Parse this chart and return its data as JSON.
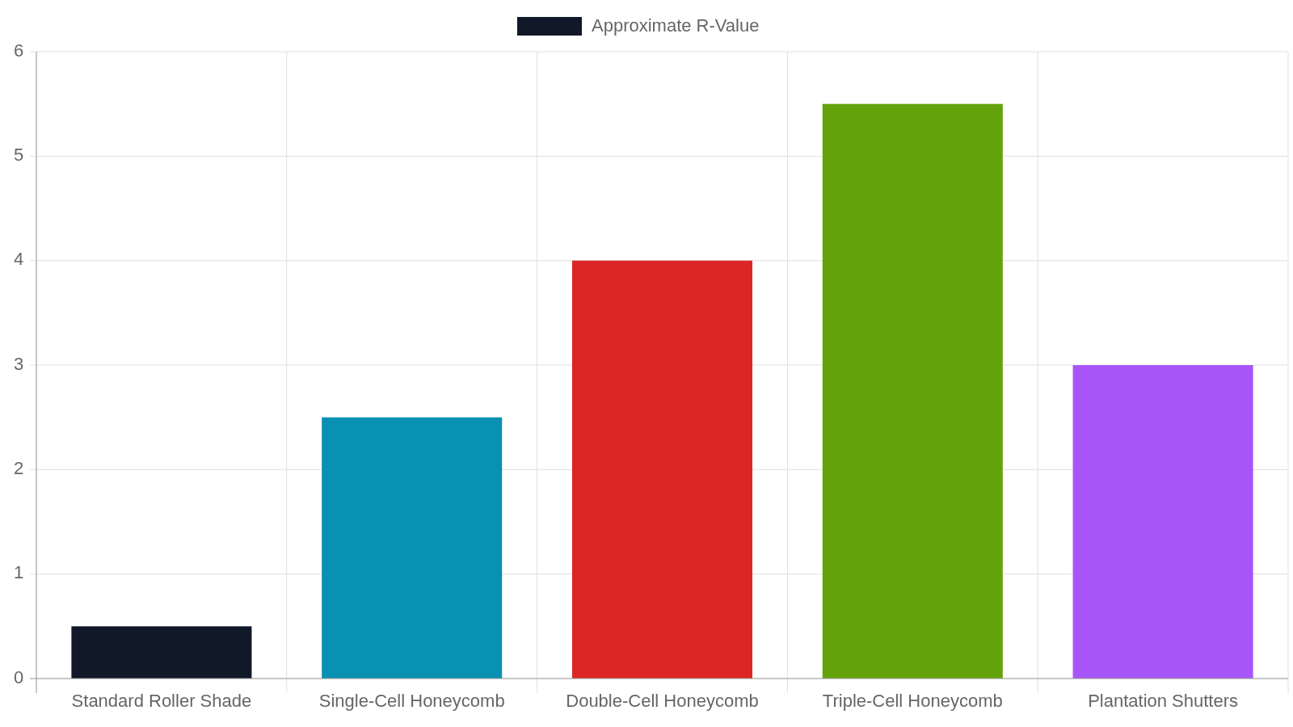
{
  "chart_data": {
    "type": "bar",
    "categories": [
      "Standard Roller Shade",
      "Single-Cell Honeycomb",
      "Double-Cell Honeycomb",
      "Triple-Cell Honeycomb",
      "Plantation Shutters"
    ],
    "series": [
      {
        "name": "Approximate R-Value",
        "colors": [
          "#111827",
          "#0891b2",
          "#dc2626",
          "#65a30d",
          "#a855f7"
        ],
        "values": [
          0.5,
          2.5,
          4,
          5.5,
          3
        ]
      }
    ],
    "ylim": [
      0,
      6
    ],
    "yticks": [
      0,
      1,
      2,
      3,
      4,
      5,
      6
    ],
    "grid": true,
    "legend": "top"
  }
}
